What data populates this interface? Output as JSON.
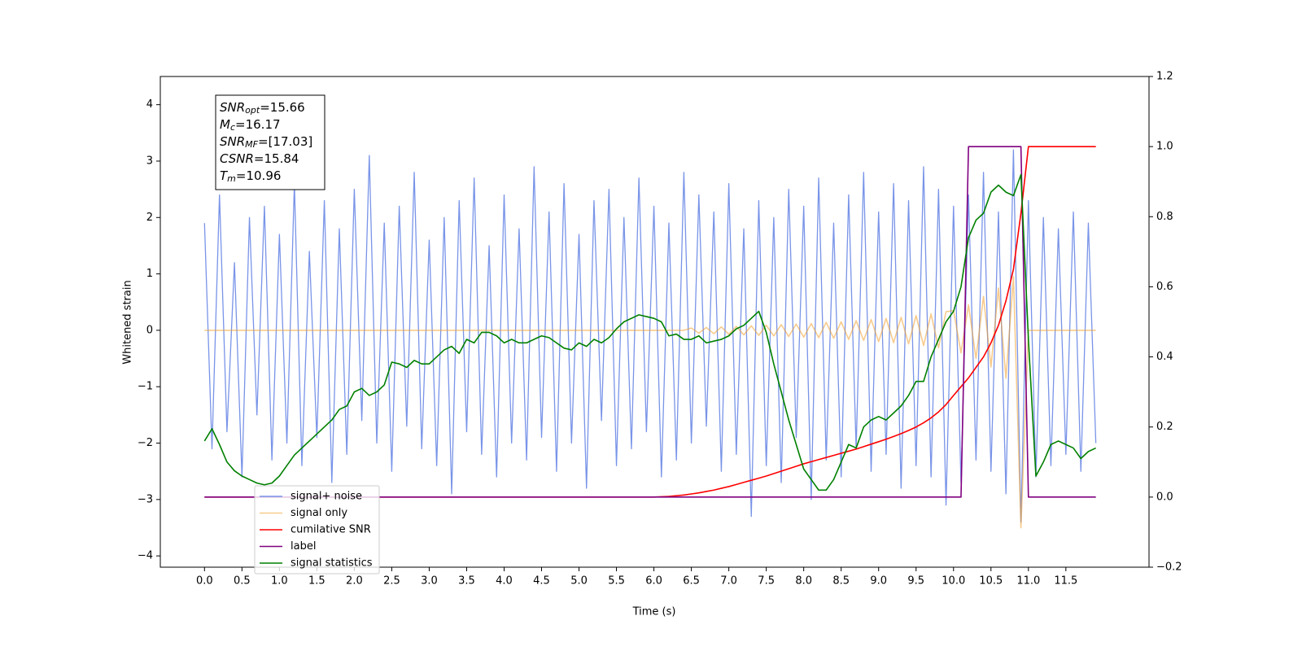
{
  "chart_data": {
    "type": "line",
    "xlabel": "Time (s)",
    "ylabel": "Whitened strain",
    "x": [
      0.0,
      0.1,
      0.2,
      0.3,
      0.4,
      0.5,
      0.6,
      0.7,
      0.8,
      0.9,
      1.0,
      1.1,
      1.2,
      1.3,
      1.4,
      1.5,
      1.6,
      1.7,
      1.8,
      1.9,
      2.0,
      2.1,
      2.2,
      2.3,
      2.4,
      2.5,
      2.6,
      2.7,
      2.8,
      2.9,
      3.0,
      3.1,
      3.2,
      3.3,
      3.4,
      3.5,
      3.6,
      3.7,
      3.8,
      3.9,
      4.0,
      4.1,
      4.2,
      4.3,
      4.4,
      4.5,
      4.6,
      4.7,
      4.8,
      4.9,
      5.0,
      5.1,
      5.2,
      5.3,
      5.4,
      5.5,
      5.6,
      5.7,
      5.8,
      5.9,
      6.0,
      6.1,
      6.2,
      6.3,
      6.4,
      6.5,
      6.6,
      6.7,
      6.8,
      6.9,
      7.0,
      7.1,
      7.2,
      7.3,
      7.4,
      7.5,
      7.6,
      7.7,
      7.8,
      7.9,
      8.0,
      8.1,
      8.2,
      8.3,
      8.4,
      8.5,
      8.6,
      8.7,
      8.8,
      8.9,
      9.0,
      9.1,
      9.2,
      9.3,
      9.4,
      9.5,
      9.6,
      9.7,
      9.8,
      9.9,
      10.0,
      10.1,
      10.2,
      10.3,
      10.4,
      10.5,
      10.6,
      10.7,
      10.8,
      10.9,
      11.0,
      11.1,
      11.2,
      11.3,
      11.4,
      11.5,
      11.6,
      11.7,
      11.8,
      11.9
    ],
    "series": [
      {
        "name": "signal+ noise",
        "color": "#7994e8",
        "axis": "y",
        "values": [
          1.9,
          -2.1,
          2.4,
          -1.8,
          1.2,
          -2.6,
          2.0,
          -1.5,
          2.2,
          -2.3,
          1.7,
          -2.0,
          2.6,
          -2.4,
          1.4,
          -1.9,
          2.3,
          -2.7,
          1.8,
          -2.2,
          2.5,
          -1.6,
          3.1,
          -2.0,
          1.9,
          -2.5,
          2.2,
          -1.7,
          2.8,
          -2.1,
          1.6,
          -2.4,
          2.0,
          -2.9,
          2.3,
          -1.8,
          2.7,
          -2.2,
          1.5,
          -2.6,
          2.4,
          -2.0,
          1.8,
          -2.3,
          2.9,
          -1.9,
          2.1,
          -2.5,
          2.6,
          -2.0,
          1.7,
          -2.8,
          2.3,
          -1.6,
          2.5,
          -2.4,
          2.0,
          -2.1,
          2.7,
          -1.8,
          2.2,
          -2.6,
          1.9,
          -2.3,
          2.8,
          -2.0,
          2.4,
          -1.7,
          2.1,
          -2.5,
          2.6,
          -2.2,
          1.8,
          -3.3,
          2.3,
          -2.4,
          2.0,
          -2.7,
          2.5,
          -1.9,
          2.2,
          -3.0,
          2.7,
          -2.3,
          1.9,
          -2.6,
          2.4,
          -2.1,
          2.8,
          -2.5,
          2.1,
          -2.2,
          2.6,
          -2.8,
          2.3,
          -2.4,
          2.9,
          -2.6,
          2.5,
          -3.1,
          2.2,
          -2.7,
          2.4,
          -2.3,
          2.8,
          -2.5,
          2.1,
          -2.9,
          3.2,
          -3.4,
          2.3,
          -2.6,
          2.0,
          -2.4,
          1.8,
          -2.2,
          2.1,
          -2.5,
          1.9,
          -2.0
        ]
      },
      {
        "name": "signal only",
        "color": "#f0a030",
        "axis": "y",
        "values": [
          0,
          0,
          0,
          0,
          0,
          0,
          0,
          0,
          0,
          0,
          0,
          0,
          0,
          0,
          0,
          0,
          0,
          0,
          0,
          0,
          0,
          0,
          0,
          0,
          0,
          0,
          0,
          0,
          0,
          0,
          0,
          0,
          0,
          0,
          0,
          0,
          0,
          0,
          0,
          0,
          0,
          0,
          0,
          0,
          0,
          0,
          0,
          0,
          0,
          0,
          0,
          0,
          0,
          0,
          0,
          0,
          0,
          0,
          0,
          0,
          0,
          0,
          0,
          0,
          0,
          0.04,
          -0.05,
          0.05,
          -0.06,
          0.06,
          -0.07,
          0.07,
          -0.08,
          0.08,
          -0.09,
          0.09,
          -0.1,
          0.1,
          -0.11,
          0.11,
          -0.12,
          0.12,
          -0.13,
          0.14,
          -0.14,
          0.15,
          -0.16,
          0.17,
          -0.18,
          0.19,
          -0.2,
          0.21,
          -0.22,
          0.23,
          -0.24,
          0.26,
          -0.27,
          0.29,
          -0.31,
          0.33,
          0.35,
          -0.4,
          0.45,
          -0.5,
          0.6,
          -0.65,
          0.75,
          -0.85,
          0.95,
          -3.5,
          0,
          0,
          0,
          0,
          0,
          0,
          0,
          0,
          0,
          0
        ]
      },
      {
        "name": "cumilative SNR",
        "color": "red",
        "axis": "y2",
        "values": [
          0,
          0,
          0,
          0,
          0,
          0,
          0,
          0,
          0,
          0,
          0,
          0,
          0,
          0,
          0,
          0,
          0,
          0,
          0,
          0,
          0,
          0,
          0,
          0,
          0,
          0,
          0,
          0,
          0,
          0,
          0,
          0,
          0,
          0,
          0,
          0,
          0,
          0,
          0,
          0,
          0,
          0,
          0,
          0,
          0,
          0,
          0,
          0,
          0,
          0,
          0,
          0,
          0,
          0,
          0,
          0,
          0,
          0,
          0,
          0,
          0,
          0.001,
          0.002,
          0.004,
          0.006,
          0.009,
          0.012,
          0.016,
          0.02,
          0.025,
          0.03,
          0.036,
          0.042,
          0.048,
          0.054,
          0.06,
          0.067,
          0.074,
          0.081,
          0.088,
          0.095,
          0.101,
          0.107,
          0.113,
          0.119,
          0.125,
          0.131,
          0.137,
          0.144,
          0.151,
          0.158,
          0.165,
          0.173,
          0.181,
          0.19,
          0.2,
          0.212,
          0.226,
          0.243,
          0.264,
          0.29,
          0.315,
          0.34,
          0.37,
          0.4,
          0.44,
          0.49,
          0.56,
          0.65,
          0.81,
          1.0,
          1.0,
          1.0,
          1.0,
          1.0,
          1.0,
          1.0,
          1.0,
          1.0,
          1.0
        ]
      },
      {
        "name": "label",
        "color": "purple",
        "axis": "y2",
        "values": [
          0,
          0,
          0,
          0,
          0,
          0,
          0,
          0,
          0,
          0,
          0,
          0,
          0,
          0,
          0,
          0,
          0,
          0,
          0,
          0,
          0,
          0,
          0,
          0,
          0,
          0,
          0,
          0,
          0,
          0,
          0,
          0,
          0,
          0,
          0,
          0,
          0,
          0,
          0,
          0,
          0,
          0,
          0,
          0,
          0,
          0,
          0,
          0,
          0,
          0,
          0,
          0,
          0,
          0,
          0,
          0,
          0,
          0,
          0,
          0,
          0,
          0,
          0,
          0,
          0,
          0,
          0,
          0,
          0,
          0,
          0,
          0,
          0,
          0,
          0,
          0,
          0,
          0,
          0,
          0,
          0,
          0,
          0,
          0,
          0,
          0,
          0,
          0,
          0,
          0,
          0,
          0,
          0,
          0,
          0,
          0,
          0,
          0,
          0,
          0,
          0,
          0,
          1,
          1,
          1,
          1,
          1,
          1,
          1,
          1,
          0,
          0,
          0,
          0,
          0,
          0,
          0,
          0,
          0,
          0
        ]
      },
      {
        "name": "signal statistics",
        "color": "green",
        "axis": "y2",
        "values": [
          0.16,
          0.195,
          0.15,
          0.1,
          0.075,
          0.06,
          0.05,
          0.04,
          0.035,
          0.04,
          0.06,
          0.09,
          0.12,
          0.14,
          0.16,
          0.18,
          0.2,
          0.22,
          0.25,
          0.26,
          0.3,
          0.31,
          0.29,
          0.3,
          0.32,
          0.385,
          0.38,
          0.37,
          0.39,
          0.38,
          0.38,
          0.4,
          0.42,
          0.43,
          0.41,
          0.45,
          0.44,
          0.47,
          0.47,
          0.46,
          0.44,
          0.45,
          0.44,
          0.44,
          0.45,
          0.46,
          0.455,
          0.44,
          0.425,
          0.42,
          0.44,
          0.43,
          0.45,
          0.44,
          0.455,
          0.48,
          0.5,
          0.51,
          0.52,
          0.515,
          0.51,
          0.5,
          0.46,
          0.465,
          0.45,
          0.45,
          0.46,
          0.44,
          0.445,
          0.45,
          0.46,
          0.48,
          0.49,
          0.51,
          0.53,
          0.47,
          0.38,
          0.3,
          0.22,
          0.15,
          0.08,
          0.05,
          0.02,
          0.02,
          0.05,
          0.1,
          0.15,
          0.14,
          0.2,
          0.22,
          0.23,
          0.22,
          0.24,
          0.26,
          0.29,
          0.33,
          0.33,
          0.4,
          0.45,
          0.5,
          0.53,
          0.6,
          0.74,
          0.79,
          0.81,
          0.87,
          0.89,
          0.87,
          0.86,
          0.92,
          0.45,
          0.06,
          0.1,
          0.15,
          0.16,
          0.15,
          0.14,
          0.11,
          0.13,
          0.14
        ]
      }
    ],
    "xlim": [
      -0.59,
      12.61
    ],
    "xticks": [
      {
        "value": 0,
        "label": "0.0"
      },
      0.5,
      {
        "value": 1,
        "label": "1.0"
      },
      1.5,
      {
        "value": 2,
        "label": "2.0"
      },
      2.5,
      {
        "value": 3,
        "label": "3.0"
      },
      3.5,
      {
        "value": 4,
        "label": "4.0"
      },
      4.5,
      {
        "value": 5,
        "label": "5.0"
      },
      5.5,
      {
        "value": 6,
        "label": "6.0"
      },
      6.5,
      {
        "value": 7,
        "label": "7.0"
      },
      7.5,
      {
        "value": 8,
        "label": "8.0"
      },
      8.5,
      {
        "value": 9,
        "label": "9.0"
      },
      9.5,
      {
        "value": 10,
        "label": "10.0"
      },
      10.5,
      {
        "value": 11,
        "label": "11.0"
      },
      11.5
    ],
    "ylim": [
      -4.2,
      4.5
    ],
    "yticks": [
      {
        "value": -4,
        "label": "−4"
      },
      {
        "value": -3,
        "label": "−3"
      },
      {
        "value": -2,
        "label": "−2"
      },
      {
        "value": -1,
        "label": "−1"
      },
      0,
      1,
      2,
      3,
      4
    ],
    "y2lim": [
      -0.2,
      1.2
    ],
    "y2ticks": [
      {
        "value": -0.2,
        "label": "−0.2"
      },
      {
        "value": 0,
        "label": "0.0"
      },
      0.2,
      0.4,
      0.6,
      0.8,
      {
        "value": 1,
        "label": "1.0"
      },
      1.2
    ],
    "annotation": [
      {
        "base": "SNR",
        "sub": "opt",
        "rest": "=15.66"
      },
      {
        "base": "M",
        "sub": "c",
        "rest": "=16.17"
      },
      {
        "base": "SNR",
        "sub": "MF",
        "rest": "=[17.03]"
      },
      {
        "base": "CSNR",
        "sub": "",
        "rest": "=15.84"
      },
      {
        "base": "T",
        "sub": "m",
        "rest": "=10.96"
      }
    ]
  }
}
